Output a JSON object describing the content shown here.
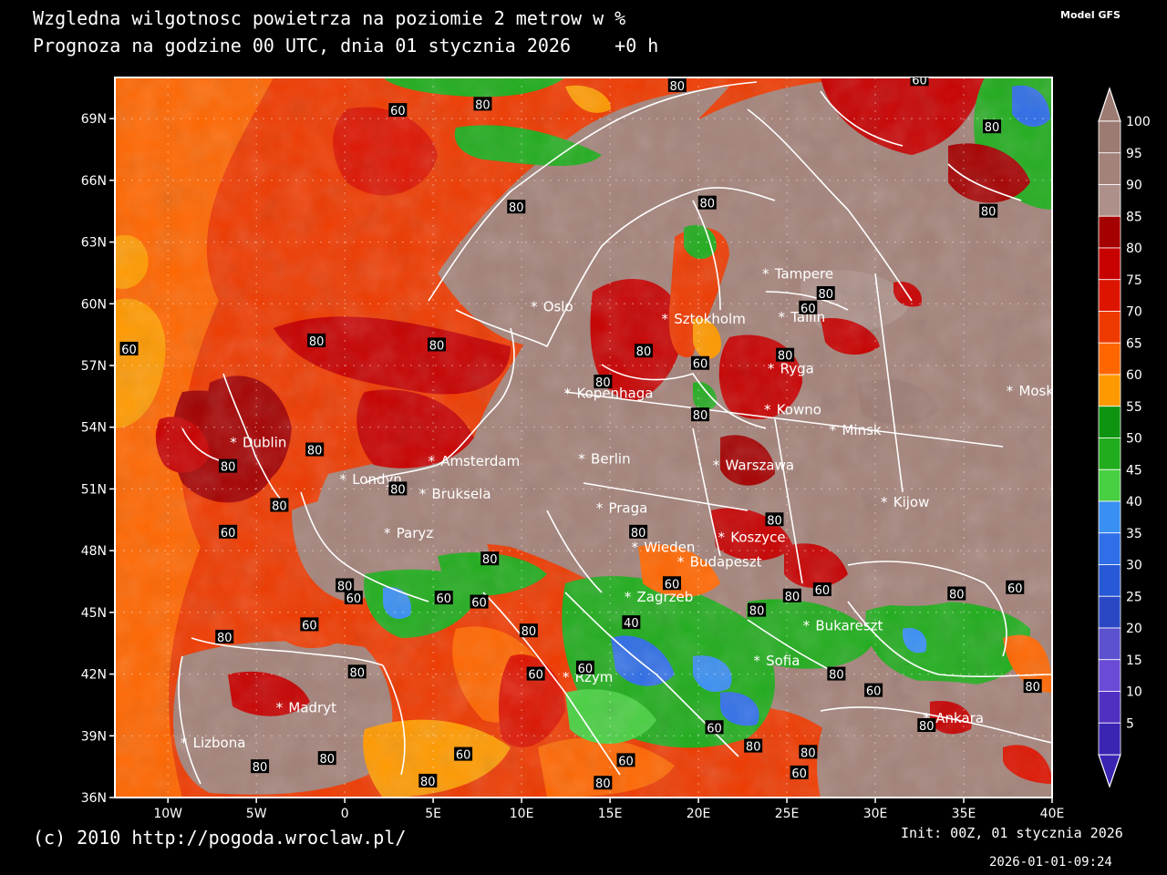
{
  "header": {
    "title_line1": "Wzgledna wilgotnosc powietrza na poziomie 2 metrow w %",
    "title_line2": "Prognoza na godzine 00 UTC, dnia 01 stycznia 2026    +0 h",
    "model": "Model GFS"
  },
  "footer": {
    "copyright": "(c) 2010 http://pogoda.wroclaw.pl/",
    "init": "Init: 00Z, 01 stycznia 2026",
    "timestamp": "2026-01-01-09:24"
  },
  "map": {
    "lon_range": [
      -13,
      40
    ],
    "lat_range": [
      36,
      71
    ],
    "lon_ticks": [
      {
        "value": -10,
        "label": "10W"
      },
      {
        "value": -5,
        "label": "5W"
      },
      {
        "value": 0,
        "label": "0"
      },
      {
        "value": 5,
        "label": "5E"
      },
      {
        "value": 10,
        "label": "10E"
      },
      {
        "value": 15,
        "label": "15E"
      },
      {
        "value": 20,
        "label": "20E"
      },
      {
        "value": 25,
        "label": "25E"
      },
      {
        "value": 30,
        "label": "30E"
      },
      {
        "value": 35,
        "label": "35E"
      },
      {
        "value": 40,
        "label": "40E"
      }
    ],
    "lat_ticks": [
      {
        "value": 36,
        "label": "36N"
      },
      {
        "value": 39,
        "label": "39N"
      },
      {
        "value": 42,
        "label": "42N"
      },
      {
        "value": 45,
        "label": "45N"
      },
      {
        "value": 48,
        "label": "48N"
      },
      {
        "value": 51,
        "label": "51N"
      },
      {
        "value": 54,
        "label": "54N"
      },
      {
        "value": 57,
        "label": "57N"
      },
      {
        "value": 60,
        "label": "60N"
      },
      {
        "value": 63,
        "label": "63N"
      },
      {
        "value": 66,
        "label": "66N"
      },
      {
        "value": 69,
        "label": "69N"
      }
    ],
    "cities": [
      {
        "name": "Oslo",
        "lon": 10.7,
        "lat": 59.9
      },
      {
        "name": "Sztokholm",
        "lon": 18.1,
        "lat": 59.3
      },
      {
        "name": "Tampere",
        "lon": 23.8,
        "lat": 61.5
      },
      {
        "name": "Tallin",
        "lon": 24.7,
        "lat": 59.4
      },
      {
        "name": "Ryga",
        "lon": 24.1,
        "lat": 56.9
      },
      {
        "name": "Moskwa",
        "lon": 37.6,
        "lat": 55.8
      },
      {
        "name": "Kopenhaga",
        "lon": 12.6,
        "lat": 55.7
      },
      {
        "name": "Kowno",
        "lon": 23.9,
        "lat": 54.9
      },
      {
        "name": "Minsk",
        "lon": 27.6,
        "lat": 53.9
      },
      {
        "name": "Dublin",
        "lon": -6.3,
        "lat": 53.3
      },
      {
        "name": "Amsterdam",
        "lon": 4.9,
        "lat": 52.4
      },
      {
        "name": "Berlin",
        "lon": 13.4,
        "lat": 52.5
      },
      {
        "name": "Warszawa",
        "lon": 21.0,
        "lat": 52.2
      },
      {
        "name": "Londyn",
        "lon": -0.1,
        "lat": 51.5
      },
      {
        "name": "Bruksela",
        "lon": 4.4,
        "lat": 50.8
      },
      {
        "name": "Kijow",
        "lon": 30.5,
        "lat": 50.4
      },
      {
        "name": "Praga",
        "lon": 14.4,
        "lat": 50.1
      },
      {
        "name": "Paryz",
        "lon": 2.4,
        "lat": 48.9
      },
      {
        "name": "Koszyce",
        "lon": 21.3,
        "lat": 48.7
      },
      {
        "name": "Wieden",
        "lon": 16.4,
        "lat": 48.2
      },
      {
        "name": "Budapeszt",
        "lon": 19.0,
        "lat": 47.5
      },
      {
        "name": "Zagrzeb",
        "lon": 16.0,
        "lat": 45.8
      },
      {
        "name": "Bukareszt",
        "lon": 26.1,
        "lat": 44.4
      },
      {
        "name": "Sofia",
        "lon": 23.3,
        "lat": 42.7
      },
      {
        "name": "Rzym",
        "lon": 12.5,
        "lat": 41.9
      },
      {
        "name": "Madryt",
        "lon": -3.7,
        "lat": 40.4
      },
      {
        "name": "Ankara",
        "lon": 32.9,
        "lat": 39.9
      },
      {
        "name": "Lizbona",
        "lon": -9.1,
        "lat": 38.7
      }
    ],
    "contour_labels": [
      {
        "text": "60",
        "lon": -12.2,
        "lat": 57.8
      },
      {
        "text": "80",
        "lon": -1.6,
        "lat": 58.2
      },
      {
        "text": "80",
        "lon": 5.2,
        "lat": 58.0
      },
      {
        "text": "60",
        "lon": 3.0,
        "lat": 69.4
      },
      {
        "text": "80",
        "lon": 7.8,
        "lat": 69.7
      },
      {
        "text": "80",
        "lon": 18.8,
        "lat": 70.6
      },
      {
        "text": "60",
        "lon": 32.5,
        "lat": 70.9
      },
      {
        "text": "80",
        "lon": 36.6,
        "lat": 68.6
      },
      {
        "text": "80",
        "lon": 36.4,
        "lat": 64.5
      },
      {
        "text": "80",
        "lon": 9.7,
        "lat": 64.7
      },
      {
        "text": "80",
        "lon": 20.5,
        "lat": 64.9
      },
      {
        "text": "80",
        "lon": 27.2,
        "lat": 60.5
      },
      {
        "text": "60",
        "lon": 26.2,
        "lat": 59.8
      },
      {
        "text": "80",
        "lon": 16.9,
        "lat": 57.7
      },
      {
        "text": "60",
        "lon": 20.1,
        "lat": 57.1
      },
      {
        "text": "80",
        "lon": 24.9,
        "lat": 57.5
      },
      {
        "text": "80",
        "lon": 14.6,
        "lat": 56.2
      },
      {
        "text": "80",
        "lon": 20.1,
        "lat": 54.6
      },
      {
        "text": "80",
        "lon": -1.7,
        "lat": 52.9
      },
      {
        "text": "80",
        "lon": -6.6,
        "lat": 52.1
      },
      {
        "text": "80",
        "lon": 3.0,
        "lat": 51.0
      },
      {
        "text": "80",
        "lon": -3.7,
        "lat": 50.2
      },
      {
        "text": "60",
        "lon": -6.6,
        "lat": 48.9
      },
      {
        "text": "80",
        "lon": 8.2,
        "lat": 47.6
      },
      {
        "text": "80",
        "lon": 16.6,
        "lat": 48.9
      },
      {
        "text": "80",
        "lon": 24.3,
        "lat": 49.5
      },
      {
        "text": "60",
        "lon": 18.5,
        "lat": 46.4
      },
      {
        "text": "60",
        "lon": 27.0,
        "lat": 46.1
      },
      {
        "text": "80",
        "lon": 25.3,
        "lat": 45.8
      },
      {
        "text": "80",
        "lon": 0.0,
        "lat": 46.3
      },
      {
        "text": "60",
        "lon": 0.5,
        "lat": 45.7
      },
      {
        "text": "60",
        "lon": 5.6,
        "lat": 45.7
      },
      {
        "text": "60",
        "lon": 7.6,
        "lat": 45.5
      },
      {
        "text": "80",
        "lon": 23.3,
        "lat": 45.1
      },
      {
        "text": "80",
        "lon": 34.6,
        "lat": 45.9
      },
      {
        "text": "60",
        "lon": 37.9,
        "lat": 46.2
      },
      {
        "text": "60",
        "lon": -2.0,
        "lat": 44.4
      },
      {
        "text": "80",
        "lon": 10.4,
        "lat": 44.1
      },
      {
        "text": "40",
        "lon": 16.2,
        "lat": 44.5
      },
      {
        "text": "80",
        "lon": -6.8,
        "lat": 43.8
      },
      {
        "text": "80",
        "lon": 0.7,
        "lat": 42.1
      },
      {
        "text": "60",
        "lon": 10.8,
        "lat": 42.0
      },
      {
        "text": "60",
        "lon": 13.6,
        "lat": 42.3
      },
      {
        "text": "80",
        "lon": 27.8,
        "lat": 42.0
      },
      {
        "text": "60",
        "lon": 29.9,
        "lat": 41.2
      },
      {
        "text": "80",
        "lon": 38.9,
        "lat": 41.4
      },
      {
        "text": "80",
        "lon": 32.9,
        "lat": 39.5
      },
      {
        "text": "60",
        "lon": 20.9,
        "lat": 39.4
      },
      {
        "text": "80",
        "lon": 23.1,
        "lat": 38.5
      },
      {
        "text": "80",
        "lon": 26.2,
        "lat": 38.2
      },
      {
        "text": "60",
        "lon": 6.7,
        "lat": 38.1
      },
      {
        "text": "60",
        "lon": 15.9,
        "lat": 37.8
      },
      {
        "text": "80",
        "lon": -1.0,
        "lat": 37.9
      },
      {
        "text": "80",
        "lon": -4.8,
        "lat": 37.5
      },
      {
        "text": "80",
        "lon": 4.7,
        "lat": 36.8
      },
      {
        "text": "80",
        "lon": 14.6,
        "lat": 36.7
      },
      {
        "text": "60",
        "lon": 25.7,
        "lat": 37.2
      }
    ]
  },
  "colorbar": {
    "levels": [
      {
        "label": "100",
        "color": "#9c7b73"
      },
      {
        "label": "95",
        "color": "#a38279"
      },
      {
        "label": "90",
        "color": "#ad9089"
      },
      {
        "label": "85",
        "color": "#a50000"
      },
      {
        "label": "80",
        "color": "#c70000"
      },
      {
        "label": "75",
        "color": "#dd1400"
      },
      {
        "label": "70",
        "color": "#ee3a00"
      },
      {
        "label": "65",
        "color": "#ff6600"
      },
      {
        "label": "60",
        "color": "#ff9900"
      },
      {
        "label": "55",
        "color": "#0e9410"
      },
      {
        "label": "50",
        "color": "#21ac1d"
      },
      {
        "label": "45",
        "color": "#49cf42"
      },
      {
        "label": "40",
        "color": "#3a8ff2"
      },
      {
        "label": "35",
        "color": "#2f6ee6"
      },
      {
        "label": "30",
        "color": "#2758d6"
      },
      {
        "label": "25",
        "color": "#2a48c4"
      },
      {
        "label": "20",
        "color": "#5c52d0"
      },
      {
        "label": "15",
        "color": "#6a4bd6"
      },
      {
        "label": "10",
        "color": "#5030c0"
      },
      {
        "label": "5",
        "color": "#3a24b2"
      }
    ],
    "top_color": "#9c7b73",
    "bottom_color": "#3a24b2"
  }
}
